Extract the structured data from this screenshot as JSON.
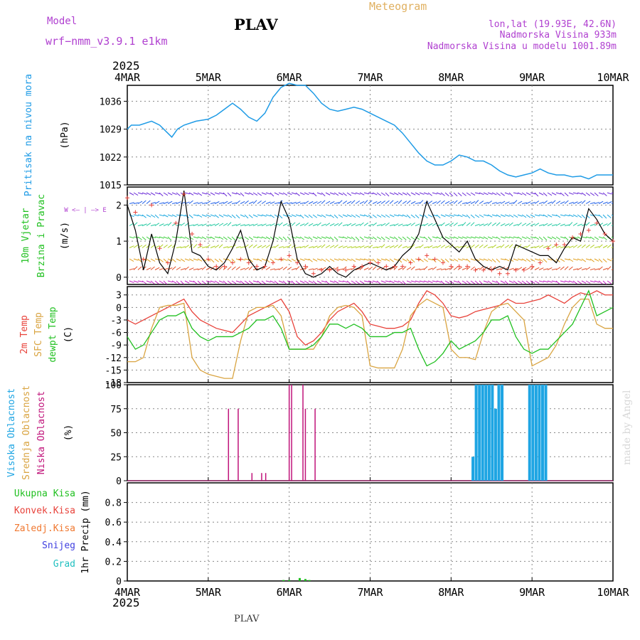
{
  "header": {
    "model_label": "Model",
    "model_name": "wrf−nmm_v3.9.1  e1km",
    "title": "PLAV",
    "meteogram_label": "Meteogram",
    "lonlat": "lon,lat (19.93E, 42.6N)",
    "elevation": "Nadmorska Visina 933m",
    "model_elevation": "Nadmorska Visina u modelu 1001.89m",
    "footer": "PLAV",
    "credit": "made by Angel"
  },
  "colors": {
    "pressure": "#1e9be6",
    "temp2m": "#e8423a",
    "sfc_temp": "#d9a441",
    "dewpoint": "#20c020",
    "high_cloud": "#1ea5e3",
    "mid_cloud": "#d9a441",
    "low_cloud": "#c0137a",
    "wind_speed": "#000000",
    "gust": "#e8423a",
    "model_text": "#b040d0",
    "meteogram_text": "#e0b060"
  },
  "time_axis": {
    "year": "2025",
    "ticks": [
      "4MAR",
      "5MAR",
      "6MAR",
      "7MAR",
      "8MAR",
      "9MAR",
      "10MAR"
    ],
    "range_days": [
      0,
      6
    ]
  },
  "chart_data": [
    {
      "id": "pressure",
      "type": "line",
      "ylabel_main": "Pritisak na nivou mora",
      "unit": "(hPa)",
      "ylim": [
        1015,
        1040
      ],
      "yticks": [
        1015,
        1022,
        1029,
        1036
      ],
      "x": [
        0,
        0.05,
        0.15,
        0.3,
        0.4,
        0.5,
        0.55,
        0.62,
        0.7,
        0.85,
        1.0,
        1.1,
        1.2,
        1.3,
        1.4,
        1.5,
        1.6,
        1.7,
        1.8,
        1.9,
        2.0,
        2.1,
        2.2,
        2.3,
        2.4,
        2.5,
        2.6,
        2.7,
        2.8,
        2.9,
        3.0,
        3.1,
        3.2,
        3.3,
        3.4,
        3.5,
        3.6,
        3.7,
        3.8,
        3.9,
        4.0,
        4.1,
        4.2,
        4.3,
        4.4,
        4.5,
        4.6,
        4.7,
        4.8,
        4.9,
        5.0,
        5.1,
        5.2,
        5.3,
        5.4,
        5.5,
        5.6,
        5.7,
        5.8,
        5.9,
        6.0
      ],
      "series": [
        {
          "values": [
            1029,
            1030,
            1030,
            1031,
            1030,
            1028,
            1027,
            1029,
            1030,
            1031,
            1031.5,
            1032.5,
            1034,
            1035.5,
            1034,
            1032,
            1031,
            1033,
            1037,
            1039.5,
            1040.5,
            1040,
            1040,
            1038,
            1035.5,
            1034,
            1033.5,
            1034,
            1034.5,
            1034,
            1033,
            1032,
            1031,
            1030,
            1028,
            1025.5,
            1023,
            1021,
            1020,
            1020,
            1021,
            1022.5,
            1022,
            1021,
            1021,
            1020,
            1018.5,
            1017.5,
            1017,
            1017.5,
            1018,
            1019,
            1018,
            1017.5,
            1017.5,
            1017,
            1017.2,
            1016.5,
            1017.5,
            1017.5,
            1017.5
          ]
        }
      ]
    },
    {
      "id": "wind",
      "type": "line",
      "ylabel_main": "10m Vjetar",
      "ylabel_sub": "Brzina i Pravac",
      "unit": "(m/s)",
      "compass": "W <— | —> E",
      "ylim": [
        -0.2,
        2.5
      ],
      "yticks": [
        0,
        1,
        2
      ],
      "x": [
        0,
        0.1,
        0.2,
        0.3,
        0.4,
        0.5,
        0.6,
        0.7,
        0.8,
        0.9,
        1.0,
        1.1,
        1.2,
        1.3,
        1.4,
        1.5,
        1.6,
        1.7,
        1.8,
        1.9,
        2.0,
        2.1,
        2.2,
        2.3,
        2.4,
        2.5,
        2.6,
        2.7,
        2.8,
        2.9,
        3.0,
        3.1,
        3.2,
        3.3,
        3.4,
        3.5,
        3.6,
        3.7,
        3.8,
        3.9,
        4.0,
        4.1,
        4.2,
        4.3,
        4.4,
        4.5,
        4.6,
        4.7,
        4.8,
        4.9,
        5.0,
        5.1,
        5.2,
        5.3,
        5.4,
        5.5,
        5.6,
        5.7,
        5.8,
        5.9,
        6.0
      ],
      "series": [
        {
          "values": [
            2.0,
            1.3,
            0.2,
            1.2,
            0.4,
            0.1,
            1.0,
            2.4,
            0.7,
            0.6,
            0.3,
            0.2,
            0.4,
            0.8,
            1.3,
            0.5,
            0.2,
            0.3,
            1.0,
            2.1,
            1.6,
            0.5,
            0.1,
            0.0,
            0.1,
            0.3,
            0.1,
            0.0,
            0.2,
            0.3,
            0.4,
            0.3,
            0.2,
            0.3,
            0.6,
            0.8,
            1.2,
            2.1,
            1.6,
            1.1,
            0.9,
            0.7,
            1.0,
            0.5,
            0.3,
            0.2,
            0.3,
            0.2,
            0.9,
            0.8,
            0.7,
            0.6,
            0.6,
            0.4,
            0.8,
            1.1,
            1.0,
            1.9,
            1.6,
            1.2,
            1.0
          ]
        },
        {
          "values": [
            2.2,
            1.8,
            0.5,
            2.0,
            0.8,
            0.4,
            1.5,
            2.3,
            1.2,
            0.9,
            0.5,
            0.3,
            0.3,
            0.4,
            0.5,
            0.4,
            0.3,
            0.3,
            0.4,
            0.5,
            0.6,
            0.4,
            0.3,
            0.1,
            0.2,
            0.2,
            0.2,
            0.2,
            0.3,
            0.3,
            0.4,
            0.4,
            0.3,
            0.3,
            0.3,
            0.4,
            0.5,
            0.6,
            0.5,
            0.4,
            0.3,
            0.3,
            0.3,
            0.2,
            0.2,
            0.2,
            0.1,
            0.1,
            0.2,
            0.2,
            0.3,
            0.4,
            0.8,
            0.9,
            0.9,
            1.1,
            1.2,
            1.3,
            1.5,
            1.2,
            1.0
          ]
        }
      ]
    },
    {
      "id": "temperature",
      "type": "line",
      "ylabel_parts": [
        "2m Temp",
        "SFC Temp",
        "dewpt Temp"
      ],
      "unit": "(C)",
      "ylim": [
        -18,
        5
      ],
      "yticks": [
        -18,
        -15,
        -12,
        -9,
        -6,
        -3,
        0,
        3
      ],
      "x": [
        0,
        0.1,
        0.2,
        0.3,
        0.4,
        0.5,
        0.6,
        0.7,
        0.8,
        0.9,
        1.0,
        1.1,
        1.2,
        1.3,
        1.4,
        1.5,
        1.6,
        1.7,
        1.8,
        1.9,
        2.0,
        2.1,
        2.2,
        2.3,
        2.4,
        2.5,
        2.6,
        2.7,
        2.8,
        2.9,
        3.0,
        3.1,
        3.2,
        3.3,
        3.4,
        3.5,
        3.6,
        3.7,
        3.8,
        3.9,
        4.0,
        4.1,
        4.2,
        4.3,
        4.4,
        4.5,
        4.6,
        4.7,
        4.8,
        4.9,
        5.0,
        5.1,
        5.2,
        5.3,
        5.4,
        5.5,
        5.6,
        5.7,
        5.8,
        5.9,
        6.0
      ],
      "series": [
        {
          "name": "2m Temp",
          "values": [
            -3,
            -4,
            -3,
            -2,
            -1,
            0,
            1,
            2,
            -1,
            -3,
            -4,
            -5,
            -5.5,
            -6,
            -4,
            -2,
            -1,
            0,
            1,
            2,
            -1,
            -7,
            -9,
            -8,
            -6,
            -3,
            -1,
            0,
            1,
            -1,
            -4,
            -4.5,
            -5,
            -5,
            -4.5,
            -3,
            1,
            4,
            3,
            1,
            -2,
            -2.5,
            -2,
            -1,
            -0.5,
            0,
            0.5,
            2,
            1,
            1,
            1.5,
            2,
            3,
            2,
            1,
            2.5,
            3.5,
            3,
            4,
            3,
            3
          ]
        },
        {
          "name": "SFC Temp",
          "values": [
            -13,
            -13,
            -12,
            -5,
            0,
            0.5,
            0.5,
            1,
            -12,
            -15,
            -16,
            -16.5,
            -17,
            -17,
            -8,
            -1,
            0,
            0,
            0.5,
            -2,
            -10,
            -10,
            -10,
            -10,
            -7,
            -2,
            0,
            0.5,
            0,
            -2,
            -14,
            -14.5,
            -14.5,
            -14.5,
            -10,
            -2,
            0.5,
            2,
            1,
            0,
            -10,
            -12,
            -12,
            -12.5,
            -6,
            -1,
            0.5,
            1,
            -1,
            -3,
            -14,
            -13,
            -12,
            -9,
            -4,
            0,
            2,
            2,
            -4,
            -5,
            -5
          ]
        },
        {
          "name": "dewpt Temp",
          "values": [
            -7,
            -10,
            -9,
            -6,
            -3,
            -2,
            -2,
            -1,
            -5,
            -7,
            -8,
            -7,
            -7,
            -7,
            -6,
            -5,
            -3,
            -3,
            -2,
            -5,
            -10,
            -10,
            -10,
            -9,
            -7,
            -4,
            -4,
            -5,
            -4,
            -5,
            -7,
            -7,
            -7,
            -6,
            -6,
            -5,
            -10,
            -14,
            -13,
            -11,
            -8,
            -10,
            -9,
            -8,
            -6,
            -3,
            -3,
            -2,
            -7,
            -10,
            -11,
            -10,
            -10,
            -8,
            -6,
            -4,
            0,
            4,
            -2,
            -1,
            0
          ]
        }
      ]
    },
    {
      "id": "clouds",
      "type": "bar",
      "ylabel_parts": [
        "Visoka Oblacnost",
        "Srednja Oblacnost",
        "Niska Oblacnost"
      ],
      "unit": "(%)",
      "ylim": [
        0,
        100
      ],
      "yticks": [
        0,
        25,
        50,
        75,
        100
      ],
      "series": [
        {
          "name": "Visoka Oblacnost",
          "x": [
            4.27,
            4.31,
            4.35,
            4.39,
            4.43,
            4.47,
            4.51,
            4.55,
            4.59,
            4.63,
            4.97,
            5.01,
            5.05,
            5.09,
            5.13,
            5.17
          ],
          "values": [
            25,
            100,
            100,
            100,
            100,
            100,
            100,
            75,
            100,
            100,
            100,
            100,
            100,
            100,
            100,
            100
          ]
        },
        {
          "name": "Niska Oblacnost",
          "x": [
            1.25,
            1.37,
            1.54,
            1.66,
            1.71,
            2.0,
            2.03,
            2.17,
            2.2,
            2.32
          ],
          "values": [
            75,
            75,
            8,
            8,
            8,
            100,
            100,
            100,
            75,
            75
          ]
        }
      ]
    },
    {
      "id": "precip",
      "type": "bar",
      "ylabel_parts": [
        "Ukupna Kisa",
        "Konvek.Kisa",
        "Zaledj.Kisa",
        "Snijeg",
        "Grad"
      ],
      "unit": "1hr Precip (mm)",
      "ylim": [
        0,
        1.0
      ],
      "yticks": [
        0,
        0.2,
        0.4,
        0.6,
        0.8
      ],
      "series": [
        {
          "name": "Ukupna Kisa",
          "x": [
            1.93,
            2.0,
            2.13,
            2.2,
            2.25
          ],
          "values": [
            0.01,
            0.01,
            0.03,
            0.02,
            0.01
          ]
        }
      ]
    }
  ]
}
